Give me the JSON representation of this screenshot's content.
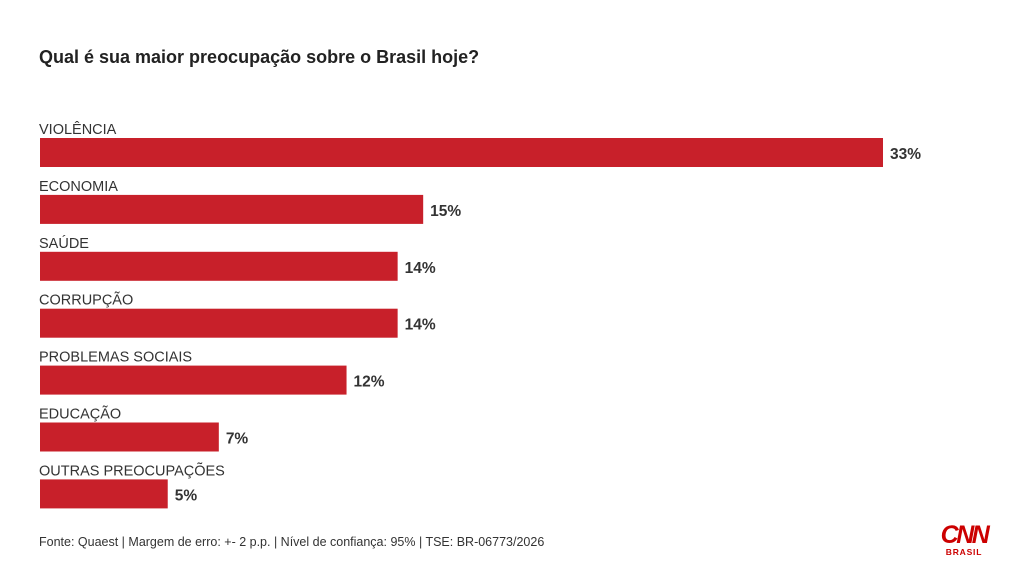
{
  "header": {
    "title": "Qual é sua maior preocupação sobre o Brasil hoje?"
  },
  "chart_data": {
    "type": "bar",
    "orientation": "horizontal",
    "title": "Qual é sua maior preocupação sobre o Brasil hoje?",
    "categories": [
      "VIOLÊNCIA",
      "ECONOMIA",
      "SAÚDE",
      "CORRUPÇÃO",
      "PROBLEMAS SOCIAIS",
      "EDUCAÇÃO",
      "OUTRAS PREOCUPAÇÕES"
    ],
    "values": [
      33,
      15,
      14,
      14,
      12,
      7,
      5
    ],
    "value_labels": [
      "33%",
      "15%",
      "14%",
      "14%",
      "12%",
      "7%",
      "5%"
    ],
    "unit": "%",
    "bar_color": "#c8202a",
    "xlim": [
      0,
      33
    ],
    "grid": false,
    "legend": "none"
  },
  "footer": {
    "source": "Fonte: Quaest | Margem de erro: +- 2 p.p. | Nível de confiança: 95% | TSE: BR-06773/2026"
  },
  "logo": {
    "brand": "CNN",
    "sub": "BRASIL",
    "color": "#cc0000"
  }
}
